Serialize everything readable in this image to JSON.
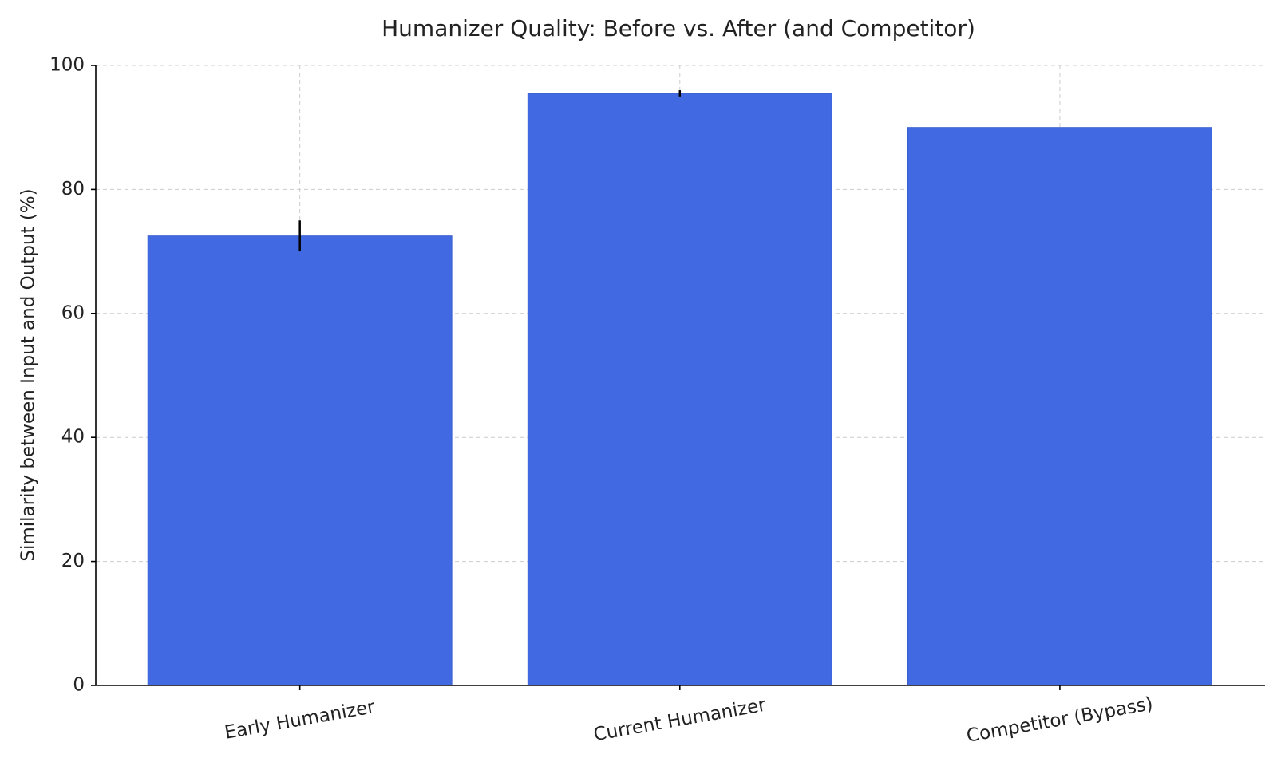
{
  "chart_data": {
    "type": "bar",
    "title": "Humanizer Quality: Before vs. After (and Competitor)",
    "y_label": "Similarity between Input and Output (%)",
    "categories": [
      "Early Humanizer",
      "Current Humanizer",
      "Competitor (Bypass)"
    ],
    "values": [
      72.5,
      95.5,
      90
    ],
    "errors": [
      2.5,
      0.5,
      0
    ],
    "color": "#4169e1",
    "ylim": [
      0,
      100
    ],
    "yticks": [
      0,
      20,
      40,
      60,
      80,
      100
    ],
    "grid": true
  }
}
